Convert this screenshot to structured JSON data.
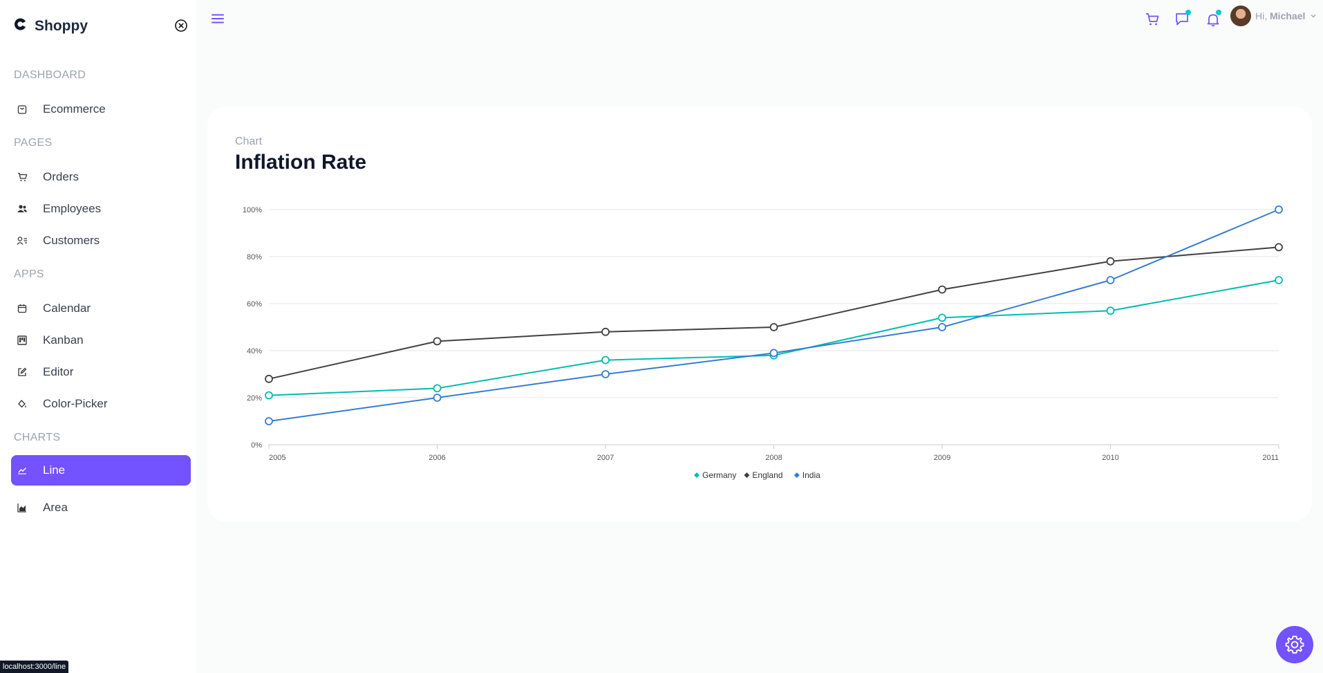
{
  "brand": {
    "name": "Shoppy"
  },
  "sidebar": {
    "sections": [
      {
        "title": "DASHBOARD",
        "items": [
          {
            "label": "Ecommerce",
            "icon": "bag-icon"
          }
        ]
      },
      {
        "title": "PAGES",
        "items": [
          {
            "label": "Orders",
            "icon": "cart-icon"
          },
          {
            "label": "Employees",
            "icon": "people-icon"
          },
          {
            "label": "Customers",
            "icon": "contacts-icon"
          }
        ]
      },
      {
        "title": "APPS",
        "items": [
          {
            "label": "Calendar",
            "icon": "calendar-icon"
          },
          {
            "label": "Kanban",
            "icon": "kanban-icon"
          },
          {
            "label": "Editor",
            "icon": "edit-icon"
          },
          {
            "label": "Color-Picker",
            "icon": "paint-icon"
          }
        ]
      },
      {
        "title": "CHARTS",
        "items": [
          {
            "label": "Line",
            "icon": "line-chart-icon",
            "active": true
          },
          {
            "label": "Area",
            "icon": "area-chart-icon"
          }
        ]
      }
    ]
  },
  "header": {
    "greeting": "Hi,",
    "user_name": "Michael"
  },
  "card": {
    "subtitle": "Chart",
    "title": "Inflation Rate"
  },
  "colors": {
    "accent": "#7352ff",
    "germany": "#00bdae",
    "england": "#404041",
    "india": "#357cd2",
    "badge": "#03c9d7"
  },
  "chart_data": {
    "type": "line",
    "x": [
      "2005",
      "2006",
      "2007",
      "2008",
      "2009",
      "2010",
      "2011"
    ],
    "ylim": [
      0,
      100
    ],
    "yticks": [
      "0%",
      "20%",
      "40%",
      "60%",
      "80%",
      "100%"
    ],
    "grid": true,
    "legend": "bottom-center",
    "series": [
      {
        "name": "Germany",
        "values": [
          21,
          24,
          36,
          38,
          54,
          57,
          70
        ]
      },
      {
        "name": "England",
        "values": [
          28,
          44,
          48,
          50,
          66,
          78,
          84
        ]
      },
      {
        "name": "India",
        "values": [
          10,
          20,
          30,
          39,
          50,
          70,
          100
        ]
      }
    ]
  },
  "status_bar": {
    "url": "localhost:3000/line"
  }
}
